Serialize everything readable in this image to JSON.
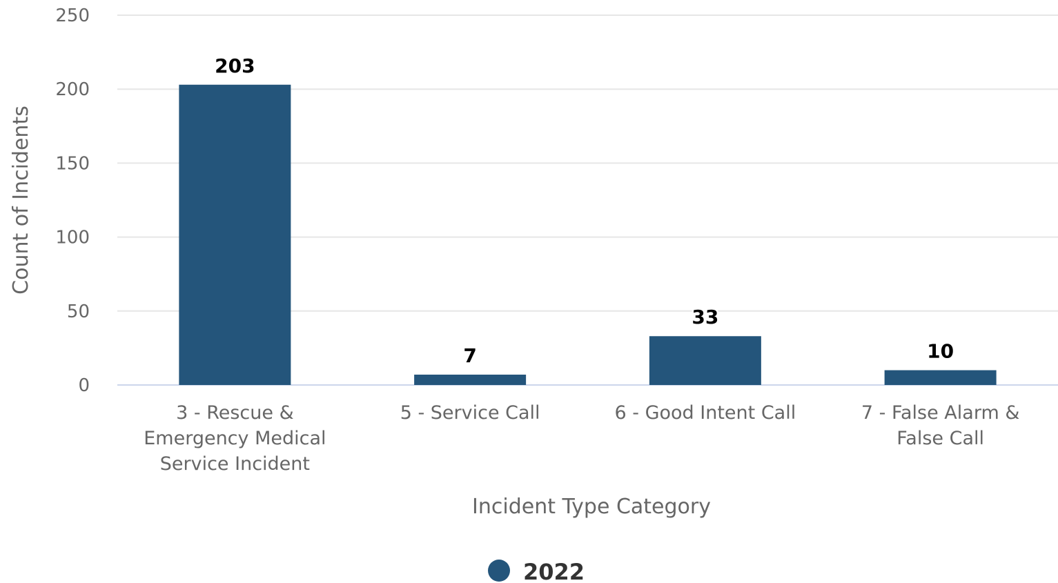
{
  "chart_data": {
    "type": "bar",
    "categories": [
      [
        "3 - Rescue &",
        "Emergency Medical",
        "Service Incident"
      ],
      [
        "5 - Service Call"
      ],
      [
        "6 - Good Intent Call"
      ],
      [
        "7 - False Alarm &",
        "False Call"
      ]
    ],
    "series": [
      {
        "name": "2022",
        "values": [
          203,
          7,
          33,
          10
        ],
        "color": "#24557b"
      }
    ],
    "xlabel": "Incident Type Category",
    "ylabel": "Count of Incidents",
    "ylim": [
      0,
      250
    ],
    "yticks": [
      0,
      50,
      100,
      150,
      200,
      250
    ],
    "grid": true,
    "legend": "bottom-center"
  }
}
